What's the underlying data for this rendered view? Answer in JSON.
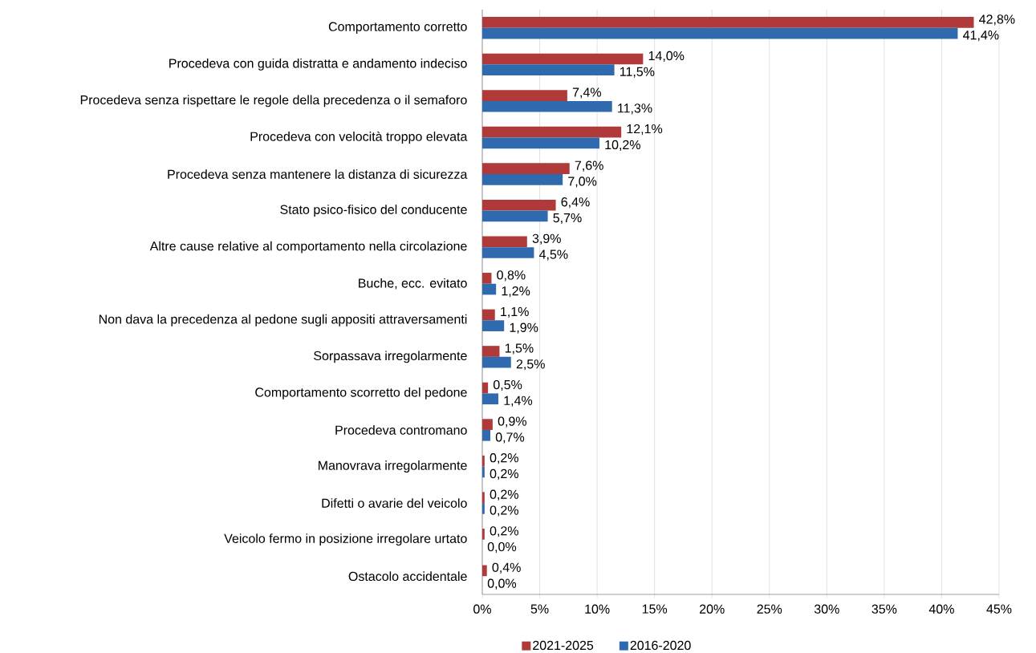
{
  "chart_data": {
    "type": "bar",
    "orientation": "horizontal",
    "categories": [
      "Comportamento corretto",
      "Procedeva con guida distratta e andamento indeciso",
      "Procedeva senza rispettare le regole della precedenza o il semaforo",
      "Procedeva con velocità troppo elevata",
      "Procedeva senza mantenere la distanza di sicurezza",
      "Stato psico-fisico del conducente",
      "Altre cause relative al comportamento nella circolazione",
      "Buche, ecc. evitato",
      "Non dava la precedenza al pedone sugli appositi attraversamenti",
      "Sorpassava irregolarmente",
      "Comportamento scorretto del pedone",
      "Procedeva contromano",
      "Manovrava irregolarmente",
      "Difetti o avarie del veicolo",
      "Veicolo fermo in posizione irregolare urtato",
      "Ostacolo accidentale"
    ],
    "series": [
      {
        "name": "2021-2025",
        "color": "#b03a3a",
        "values": [
          42.8,
          14.0,
          7.4,
          12.1,
          7.6,
          6.4,
          3.9,
          0.8,
          1.1,
          1.5,
          0.5,
          0.9,
          0.2,
          0.2,
          0.2,
          0.4
        ],
        "value_labels": [
          "42,8%",
          "14,0%",
          "7,4%",
          "12,1%",
          "7,6%",
          "6,4%",
          "3,9%",
          "0,8%",
          "1,1%",
          "1,5%",
          "0,5%",
          "0,9%",
          "0,2%",
          "0,2%",
          "0,2%",
          "0,4%"
        ]
      },
      {
        "name": "2016-2020",
        "color": "#2f6aaf",
        "values": [
          41.4,
          11.5,
          11.3,
          10.2,
          7.0,
          5.7,
          4.5,
          1.2,
          1.9,
          2.5,
          1.4,
          0.7,
          0.2,
          0.2,
          0.0,
          0.0
        ],
        "value_labels": [
          "41,4%",
          "11,5%",
          "11,3%",
          "10,2%",
          "7,0%",
          "5,7%",
          "4,5%",
          "1,2%",
          "1,9%",
          "2,5%",
          "1,4%",
          "0,7%",
          "0,2%",
          "0,2%",
          "0,0%",
          "0,0%"
        ]
      }
    ],
    "xlim": [
      0,
      45
    ],
    "xticks": [
      {
        "value": 0,
        "label": "0%"
      },
      {
        "value": 5,
        "label": "5%"
      },
      {
        "value": 10,
        "label": "10%"
      },
      {
        "value": 15,
        "label": "15%"
      },
      {
        "value": 20,
        "label": "20%"
      },
      {
        "value": 25,
        "label": "25%"
      },
      {
        "value": 30,
        "label": "30%"
      },
      {
        "value": 35,
        "label": "35%"
      },
      {
        "value": 40,
        "label": "40%"
      },
      {
        "value": 45,
        "label": "45%"
      }
    ],
    "grid": "x",
    "legend": "bottom"
  }
}
